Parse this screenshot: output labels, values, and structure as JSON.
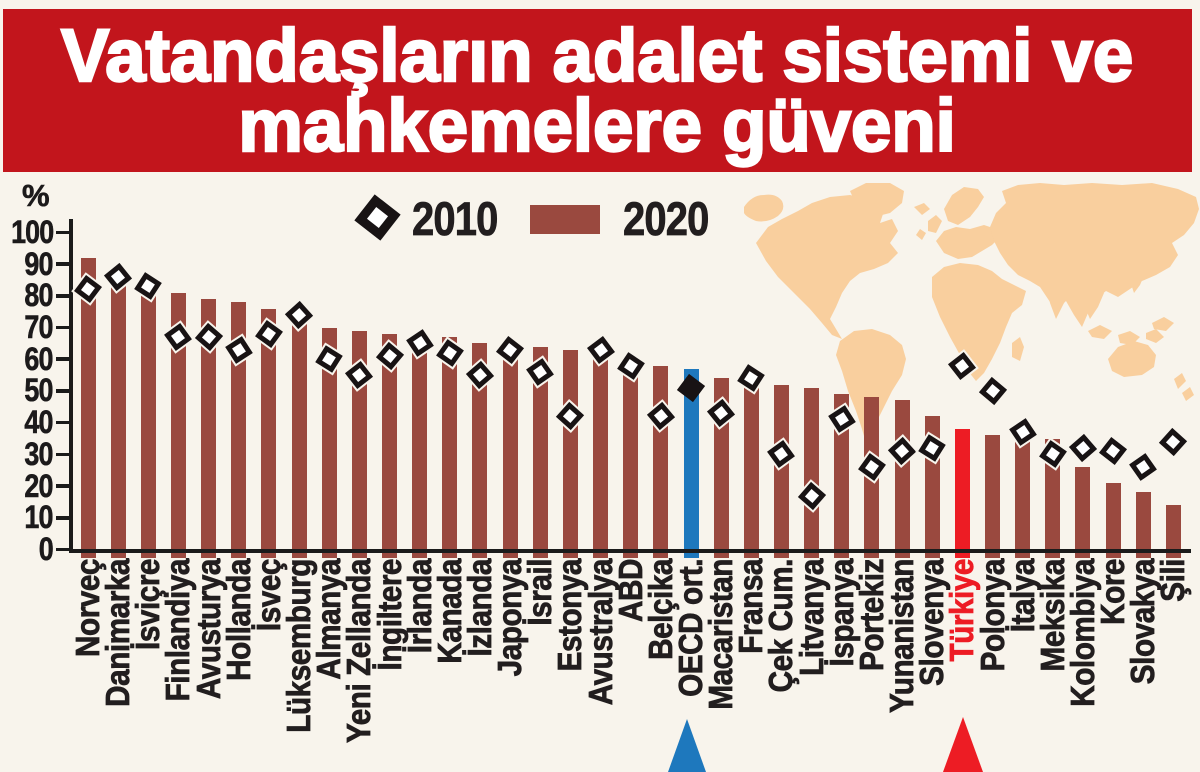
{
  "title": {
    "line1": "Vatandaşların adalet sistemi ve",
    "line2": "mahkemelere güveni"
  },
  "legend": {
    "series_2010_label": "2010",
    "series_2020_label": "2020",
    "marker_2010": "open-diamond",
    "marker_2020": "bar-swatch"
  },
  "y_axis": {
    "unit_label": "%",
    "tick_labels": [
      "100",
      "90",
      "80",
      "70",
      "60",
      "50",
      "40",
      "30",
      "20",
      "10",
      "0"
    ],
    "min": 0,
    "max": 100
  },
  "chart_data": {
    "type": "bar",
    "title": "Vatandaşların adalet sistemi ve mahkemelere güveni",
    "xlabel": "",
    "ylabel": "%",
    "ylim": [
      0,
      100
    ],
    "grid": false,
    "legend_position": "top",
    "categories": [
      "Norveç",
      "Danimarka",
      "İsviçre",
      "Finlandiya",
      "Avusturya",
      "Hollanda",
      "İsveç",
      "Lüksemburg",
      "Almanya",
      "Yeni Zellanda",
      "İngiltere",
      "İrlanda",
      "Kanada",
      "İzlanda",
      "Japonya",
      "İsrail",
      "Estonya",
      "Avustralya",
      "ABD",
      "Belçika",
      "OECD ort.",
      "Macaristan",
      "Fransa",
      "Çek Cum.",
      "Litvanya",
      "İspanya",
      "Portekiz",
      "Yunanistan",
      "Slovenya",
      "Türkiye",
      "Polonya",
      "İtalya",
      "Meksika",
      "Kolombiya",
      "Kore",
      "Slovakya",
      "Şili"
    ],
    "series": [
      {
        "name": "2010",
        "style": "diamond-marker",
        "values": [
          82,
          86,
          83,
          67,
          67,
          63,
          68,
          74,
          60,
          55,
          61,
          65,
          62,
          55,
          63,
          56,
          42,
          63,
          58,
          42,
          51,
          43,
          54,
          30,
          17,
          41,
          26,
          31,
          32,
          58,
          50,
          37,
          30,
          32,
          31,
          26,
          34
        ]
      },
      {
        "name": "2020",
        "style": "bar",
        "values": [
          92,
          84,
          81,
          81,
          79,
          78,
          76,
          76,
          70,
          69,
          68,
          67,
          67,
          65,
          65,
          64,
          63,
          62,
          60,
          58,
          57,
          54,
          52,
          52,
          51,
          49,
          48,
          47,
          42,
          38,
          36,
          36,
          35,
          26,
          21,
          18,
          14
        ]
      }
    ],
    "highlighted_categories": {
      "OECD ort.": {
        "bar_color": "#1e78bd",
        "marker": "filled-diamond",
        "pointer": "blue-arrow"
      },
      "Türkiye": {
        "bar_color": "#ed1c24",
        "label_color": "#ed1c24",
        "pointer": "red-arrow"
      }
    }
  },
  "colors": {
    "background": "#f8f4ec",
    "banner": "#c2151c",
    "banner_text": "#ffffff",
    "bar_default": "#9a493f",
    "bar_oecd": "#1e78bd",
    "bar_turkiye": "#ed1c24",
    "diamond_stroke": "#181314",
    "axis": "#1b1b1b",
    "text": "#221e1f",
    "map": "#f9cf9e",
    "arrow_blue": "#1e78bd",
    "arrow_red": "#ed1c24"
  }
}
